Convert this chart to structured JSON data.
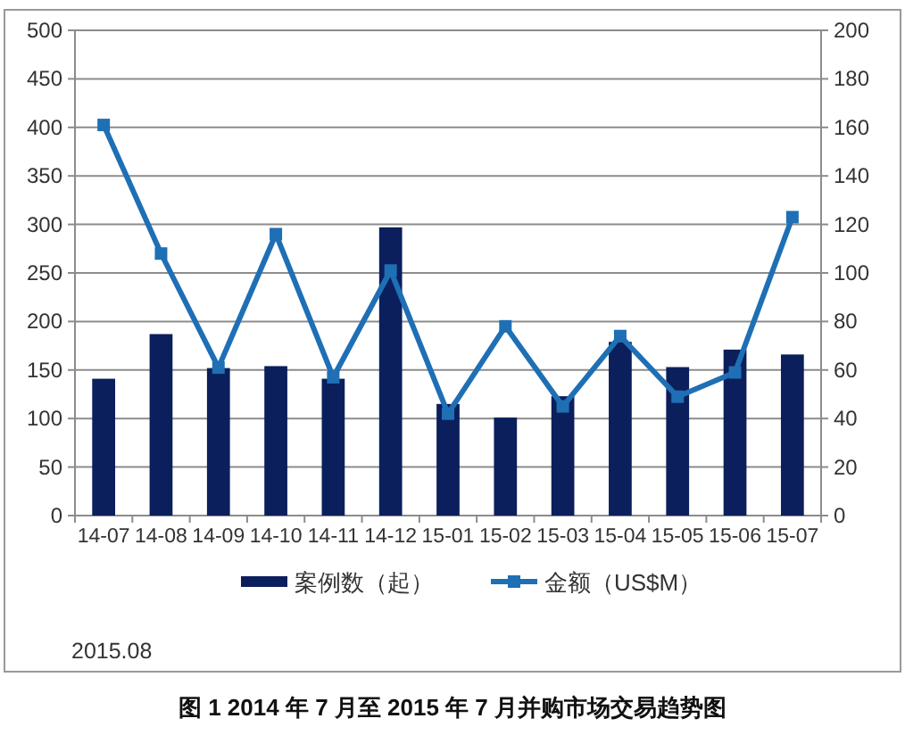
{
  "chart_data": {
    "type": "bar",
    "title": "图 1 2014 年 7 月至 2015 年 7 月并购市场交易趋势图",
    "categories": [
      "14-07",
      "14-08",
      "14-09",
      "14-10",
      "14-11",
      "14-12",
      "15-01",
      "15-02",
      "15-03",
      "15-04",
      "15-05",
      "15-06",
      "15-07"
    ],
    "series": [
      {
        "name": "案例数（起）",
        "color": "#0b1f5c",
        "values": [
          141,
          187,
          152,
          154,
          141,
          297,
          115,
          101,
          123,
          179,
          153,
          171,
          166
        ]
      },
      {
        "name": "金额（US$M）",
        "type": "line",
        "axis": "y2",
        "marker": "square",
        "color": "#1f6fb5",
        "values": [
          161,
          108,
          61,
          116,
          57,
          101,
          42,
          78,
          45,
          74,
          49,
          59,
          123
        ]
      }
    ],
    "ylim": [
      0,
      500
    ],
    "yticks": [
      0,
      50,
      100,
      150,
      200,
      250,
      300,
      350,
      400,
      450,
      500
    ],
    "y2lim": [
      0,
      200
    ],
    "y2ticks": [
      0,
      20,
      40,
      60,
      80,
      100,
      120,
      140,
      160,
      180,
      200
    ],
    "grid": "y",
    "legend": "bottom",
    "annotations": [
      "2015.08"
    ]
  }
}
